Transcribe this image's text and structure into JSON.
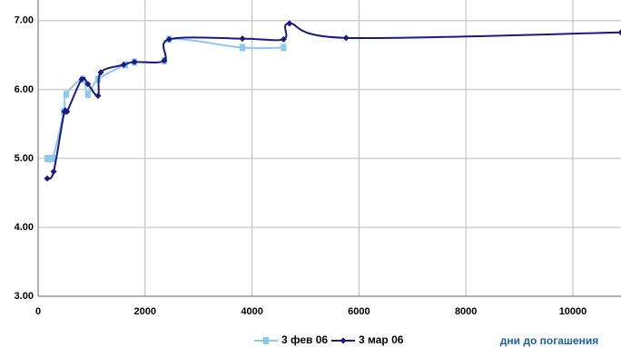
{
  "chart_data": {
    "type": "line",
    "x_label": "дни до погашения",
    "xlim": [
      0,
      10900
    ],
    "ylim": [
      3,
      7.3
    ],
    "xticks": [
      0,
      2000,
      4000,
      6000,
      8000,
      10000
    ],
    "yticks": [
      {
        "value": 3,
        "label": "3.00"
      },
      {
        "value": 4,
        "label": "4.00"
      },
      {
        "value": 5,
        "label": "5.00"
      },
      {
        "value": 6,
        "label": "6.00"
      },
      {
        "value": 7,
        "label": "7.00"
      }
    ],
    "grid": true,
    "series": [
      {
        "name": "3 фев 06",
        "color": "#8cc8f0",
        "marker": "square",
        "x": [
          170,
          270,
          480,
          525,
          830,
          930,
          1120,
          1630,
          1800,
          2360,
          2450,
          3820,
          4590
        ],
        "values": [
          5.0,
          5.0,
          5.68,
          5.93,
          6.15,
          5.93,
          6.15,
          6.36,
          6.4,
          6.42,
          6.73,
          6.61,
          6.61
        ]
      },
      {
        "name": "3 мар 06",
        "color": "#1a1a80",
        "marker": "diamond",
        "x": [
          170,
          290,
          490,
          540,
          815,
          930,
          1120,
          1170,
          1600,
          1800,
          2360,
          2450,
          3820,
          4590,
          4700,
          5760,
          10900
        ],
        "values": [
          4.71,
          4.81,
          5.68,
          5.68,
          6.15,
          6.08,
          5.91,
          6.25,
          6.36,
          6.4,
          6.42,
          6.73,
          6.74,
          6.73,
          6.96,
          6.75,
          6.83
        ]
      }
    ]
  }
}
